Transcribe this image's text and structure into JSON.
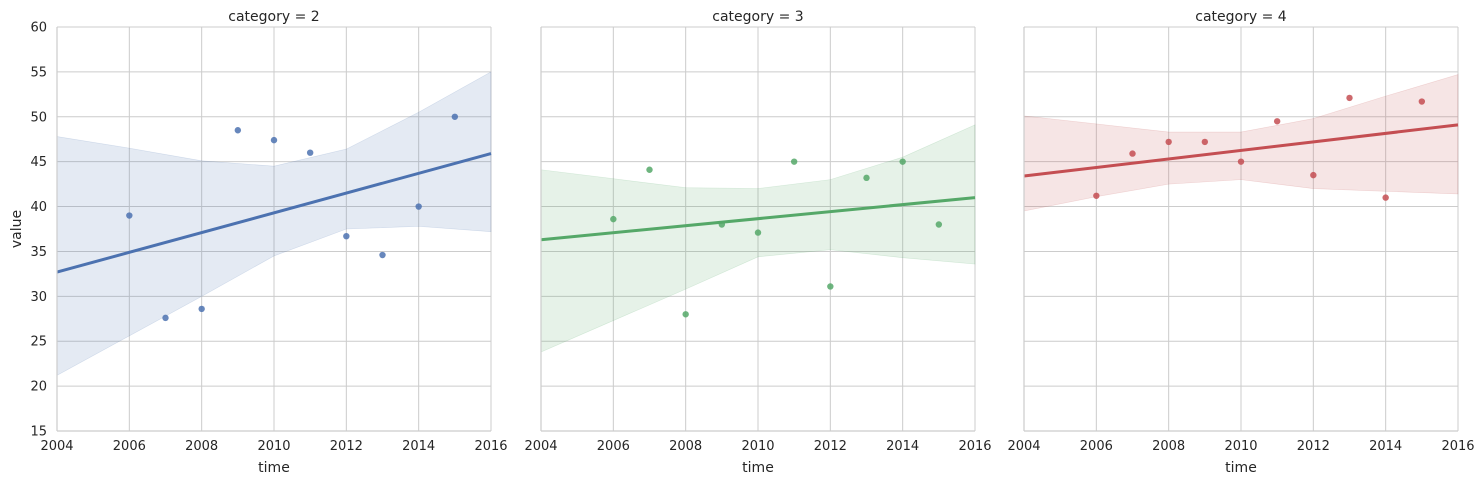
{
  "chart_data": {
    "type": "scatter",
    "figure_kind": "facet-grid-regression",
    "xlabel": "time",
    "ylabel": "value",
    "xlim": [
      2004,
      2016
    ],
    "ylim": [
      15,
      60
    ],
    "x_ticks": [
      2004,
      2006,
      2008,
      2010,
      2012,
      2014,
      2016
    ],
    "y_ticks": [
      15,
      20,
      25,
      30,
      35,
      40,
      45,
      50,
      55,
      60
    ],
    "grid": true,
    "panels": [
      {
        "title": "category = 2",
        "color": "#4c72b0",
        "points": [
          {
            "x": 2006,
            "y": 39.0
          },
          {
            "x": 2007,
            "y": 27.6
          },
          {
            "x": 2008,
            "y": 28.6
          },
          {
            "x": 2009,
            "y": 48.5
          },
          {
            "x": 2010,
            "y": 47.4
          },
          {
            "x": 2011,
            "y": 46.0
          },
          {
            "x": 2012,
            "y": 36.7
          },
          {
            "x": 2013,
            "y": 34.6
          },
          {
            "x": 2014,
            "y": 40.0
          },
          {
            "x": 2015,
            "y": 50.0
          }
        ],
        "fit": {
          "x": [
            2004,
            2016
          ],
          "y": [
            32.7,
            45.9
          ]
        },
        "ci_upper": [
          {
            "x": 2004,
            "y": 47.8
          },
          {
            "x": 2006,
            "y": 46.5
          },
          {
            "x": 2008,
            "y": 45.1
          },
          {
            "x": 2010,
            "y": 44.5
          },
          {
            "x": 2012,
            "y": 46.4
          },
          {
            "x": 2014,
            "y": 50.5
          },
          {
            "x": 2016,
            "y": 55.0
          }
        ],
        "ci_lower": [
          {
            "x": 2004,
            "y": 21.2
          },
          {
            "x": 2006,
            "y": 25.6
          },
          {
            "x": 2008,
            "y": 30.0
          },
          {
            "x": 2010,
            "y": 34.5
          },
          {
            "x": 2012,
            "y": 37.5
          },
          {
            "x": 2014,
            "y": 37.8
          },
          {
            "x": 2016,
            "y": 37.2
          }
        ]
      },
      {
        "title": "category = 3",
        "color": "#55a868",
        "points": [
          {
            "x": 2006,
            "y": 38.6
          },
          {
            "x": 2007,
            "y": 44.1
          },
          {
            "x": 2008,
            "y": 28.0
          },
          {
            "x": 2009,
            "y": 38.0
          },
          {
            "x": 2010,
            "y": 37.1
          },
          {
            "x": 2011,
            "y": 45.0
          },
          {
            "x": 2012,
            "y": 31.1
          },
          {
            "x": 2013,
            "y": 43.2
          },
          {
            "x": 2014,
            "y": 45.0
          },
          {
            "x": 2015,
            "y": 38.0
          }
        ],
        "fit": {
          "x": [
            2004,
            2016
          ],
          "y": [
            36.3,
            41.0
          ]
        },
        "ci_upper": [
          {
            "x": 2004,
            "y": 44.1
          },
          {
            "x": 2006,
            "y": 43.1
          },
          {
            "x": 2008,
            "y": 42.1
          },
          {
            "x": 2010,
            "y": 42.0
          },
          {
            "x": 2012,
            "y": 43.0
          },
          {
            "x": 2014,
            "y": 45.5
          },
          {
            "x": 2016,
            "y": 49.1
          }
        ],
        "ci_lower": [
          {
            "x": 2004,
            "y": 23.8
          },
          {
            "x": 2006,
            "y": 27.3
          },
          {
            "x": 2008,
            "y": 30.8
          },
          {
            "x": 2010,
            "y": 34.4
          },
          {
            "x": 2012,
            "y": 35.2
          },
          {
            "x": 2014,
            "y": 34.3
          },
          {
            "x": 2016,
            "y": 33.6
          }
        ]
      },
      {
        "title": "category = 4",
        "color": "#c44e52",
        "points": [
          {
            "x": 2006,
            "y": 41.2
          },
          {
            "x": 2007,
            "y": 45.9
          },
          {
            "x": 2008,
            "y": 47.2
          },
          {
            "x": 2009,
            "y": 47.2
          },
          {
            "x": 2010,
            "y": 45.0
          },
          {
            "x": 2011,
            "y": 49.5
          },
          {
            "x": 2012,
            "y": 43.5
          },
          {
            "x": 2013,
            "y": 52.1
          },
          {
            "x": 2014,
            "y": 41.0
          },
          {
            "x": 2015,
            "y": 51.7
          }
        ],
        "fit": {
          "x": [
            2004,
            2016
          ],
          "y": [
            43.4,
            49.1
          ]
        },
        "ci_upper": [
          {
            "x": 2004,
            "y": 50.1
          },
          {
            "x": 2006,
            "y": 49.2
          },
          {
            "x": 2008,
            "y": 48.3
          },
          {
            "x": 2010,
            "y": 48.3
          },
          {
            "x": 2012,
            "y": 49.8
          },
          {
            "x": 2014,
            "y": 52.3
          },
          {
            "x": 2016,
            "y": 54.7
          }
        ],
        "ci_lower": [
          {
            "x": 2004,
            "y": 39.5
          },
          {
            "x": 2006,
            "y": 41.1
          },
          {
            "x": 2008,
            "y": 42.5
          },
          {
            "x": 2010,
            "y": 43.0
          },
          {
            "x": 2012,
            "y": 42.0
          },
          {
            "x": 2014,
            "y": 41.7
          },
          {
            "x": 2016,
            "y": 41.4
          }
        ]
      }
    ]
  }
}
